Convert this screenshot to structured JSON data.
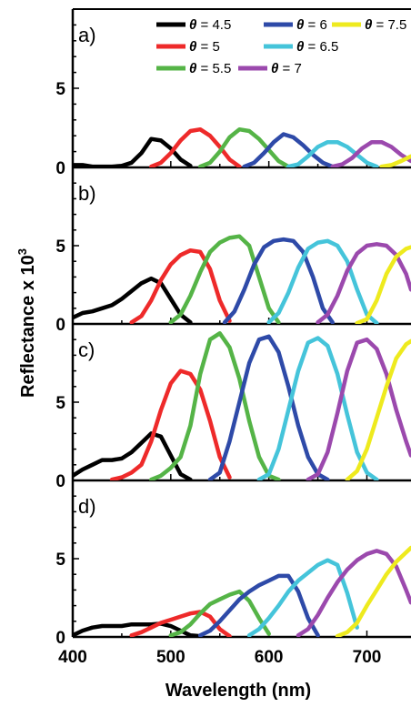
{
  "chart_data": {
    "type": "line",
    "ylabel_main": "Reflectance x 10",
    "ylabel_exp": "3",
    "xlabel": "Wavelength (nm)",
    "xlim": [
      400,
      745
    ],
    "xticks": [
      "400",
      "500",
      "600",
      "700"
    ],
    "series_colors": {
      "4.5": "#000000",
      "5": "#ee2a2a",
      "5.5": "#55b447",
      "6": "#2e4aa8",
      "6.5": "#45c4da",
      "7": "#9b49ad",
      "7.5": "#eeea1e"
    },
    "legend": [
      {
        "key": "4.5",
        "symbol": "θ",
        "text": " = 4.5"
      },
      {
        "key": "6",
        "symbol": "θ",
        "text": " = 6"
      },
      {
        "key": "7.5",
        "symbol": "θ",
        "text": " = 7.5"
      },
      {
        "key": "5",
        "symbol": "θ",
        "text": " = 5"
      },
      {
        "key": "6.5",
        "symbol": "θ",
        "text": " = 6.5"
      },
      {
        "key": "5.5",
        "symbol": "θ",
        "text": " = 5.5"
      },
      {
        "key": "7",
        "symbol": "θ",
        "text": " = 7"
      }
    ],
    "panels": [
      {
        "label": "a)",
        "ylim": [
          0,
          10
        ],
        "yticks": [
          "0",
          "5"
        ],
        "series": [
          {
            "key": "4.5",
            "x": [
              400,
              410,
              420,
              430,
              440,
              450,
              460,
              470,
              480,
              490,
              500,
              510,
              520
            ],
            "y": [
              0.15,
              0.15,
              0.05,
              0.05,
              0.05,
              0.1,
              0.3,
              0.9,
              1.8,
              1.7,
              1.2,
              0.5,
              0.1
            ]
          },
          {
            "key": "5",
            "x": [
              480,
              490,
              500,
              510,
              520,
              530,
              540,
              550,
              560,
              570
            ],
            "y": [
              0.05,
              0.3,
              0.9,
              1.7,
              2.3,
              2.4,
              2.0,
              1.3,
              0.5,
              0.05
            ]
          },
          {
            "key": "5.5",
            "x": [
              530,
              540,
              550,
              560,
              570,
              580,
              590,
              600,
              610,
              620
            ],
            "y": [
              0.05,
              0.3,
              1.0,
              1.9,
              2.4,
              2.3,
              1.8,
              1.1,
              0.4,
              0.05
            ]
          },
          {
            "key": "6",
            "x": [
              575,
              585,
              595,
              605,
              615,
              625,
              635,
              645,
              655,
              665
            ],
            "y": [
              0.05,
              0.3,
              0.9,
              1.6,
              2.1,
              1.9,
              1.4,
              0.8,
              0.3,
              0.05
            ]
          },
          {
            "key": "6.5",
            "x": [
              620,
              630,
              640,
              650,
              660,
              670,
              680,
              690,
              700,
              710
            ],
            "y": [
              0.05,
              0.2,
              0.7,
              1.3,
              1.6,
              1.6,
              1.3,
              0.8,
              0.3,
              0.05
            ]
          },
          {
            "key": "7",
            "x": [
              665,
              675,
              685,
              695,
              705,
              715,
              725,
              735,
              745
            ],
            "y": [
              0.05,
              0.2,
              0.6,
              1.2,
              1.6,
              1.6,
              1.3,
              0.8,
              0.4
            ]
          },
          {
            "key": "7.5",
            "x": [
              715,
              725,
              735,
              745
            ],
            "y": [
              0.05,
              0.15,
              0.4,
              0.7
            ]
          }
        ]
      },
      {
        "label": "b)",
        "ylim": [
          0,
          10
        ],
        "yticks": [
          "0",
          "5"
        ],
        "series": [
          {
            "key": "4.5",
            "x": [
              400,
              410,
              420,
              430,
              440,
              450,
              460,
              470,
              480,
              490,
              500,
              510,
              520
            ],
            "y": [
              0.4,
              0.7,
              0.8,
              1.0,
              1.2,
              1.6,
              2.1,
              2.6,
              2.9,
              2.6,
              1.6,
              0.6,
              0.1
            ]
          },
          {
            "key": "5",
            "x": [
              460,
              470,
              480,
              490,
              500,
              510,
              520,
              530,
              540,
              550,
              560
            ],
            "y": [
              0.1,
              0.5,
              1.5,
              2.8,
              3.8,
              4.4,
              4.7,
              4.6,
              3.5,
              1.5,
              0.2
            ]
          },
          {
            "key": "5.5",
            "x": [
              500,
              510,
              520,
              530,
              540,
              550,
              560,
              570,
              580,
              590,
              600,
              610
            ],
            "y": [
              0.1,
              0.6,
              1.8,
              3.3,
              4.6,
              5.2,
              5.5,
              5.6,
              5.0,
              3.0,
              1.0,
              0.1
            ]
          },
          {
            "key": "6",
            "x": [
              555,
              565,
              575,
              585,
              595,
              605,
              615,
              625,
              635,
              645,
              655,
              665
            ],
            "y": [
              0.1,
              0.8,
              2.2,
              3.8,
              4.9,
              5.3,
              5.4,
              5.3,
              4.6,
              3.0,
              1.0,
              0.1
            ]
          },
          {
            "key": "6.5",
            "x": [
              600,
              610,
              620,
              630,
              640,
              650,
              660,
              670,
              680,
              690,
              700,
              710
            ],
            "y": [
              0.1,
              0.7,
              2.0,
              3.6,
              4.8,
              5.2,
              5.3,
              5.0,
              4.0,
              2.2,
              0.6,
              0.05
            ]
          },
          {
            "key": "7",
            "x": [
              650,
              660,
              670,
              680,
              690,
              700,
              710,
              720,
              730,
              740,
              745
            ],
            "y": [
              0.1,
              0.6,
              1.8,
              3.4,
              4.5,
              5.0,
              5.1,
              5.0,
              4.4,
              3.2,
              2.2
            ]
          },
          {
            "key": "7.5",
            "x": [
              690,
              700,
              710,
              720,
              730,
              740,
              745
            ],
            "y": [
              0.05,
              0.3,
              1.5,
              3.2,
              4.3,
              4.8,
              4.9
            ]
          }
        ]
      },
      {
        "label": "c)",
        "ylim": [
          0,
          10
        ],
        "yticks": [
          "0",
          "5"
        ],
        "series": [
          {
            "key": "4.5",
            "x": [
              400,
              410,
              420,
              430,
              440,
              450,
              460,
              470,
              480,
              490,
              500,
              510,
              520
            ],
            "y": [
              0.3,
              0.7,
              1.0,
              1.3,
              1.3,
              1.4,
              1.8,
              2.4,
              3.0,
              2.8,
              1.6,
              0.4,
              0.05
            ]
          },
          {
            "key": "5",
            "x": [
              440,
              450,
              460,
              470,
              480,
              490,
              500,
              510,
              520,
              530,
              540,
              550,
              560
            ],
            "y": [
              0.05,
              0.2,
              0.5,
              1.0,
              2.5,
              4.5,
              6.2,
              7.0,
              6.8,
              5.8,
              3.8,
              1.5,
              0.2
            ]
          },
          {
            "key": "5.5",
            "x": [
              480,
              490,
              500,
              510,
              520,
              530,
              540,
              550,
              560,
              570,
              580,
              590,
              600,
              610
            ],
            "y": [
              0.05,
              0.3,
              0.8,
              1.5,
              3.5,
              6.8,
              9.0,
              9.4,
              8.5,
              6.5,
              3.8,
              1.5,
              0.3,
              0.05
            ]
          },
          {
            "key": "6",
            "x": [
              540,
              550,
              560,
              570,
              580,
              590,
              600,
              610,
              620,
              630,
              640,
              650,
              660
            ],
            "y": [
              0.05,
              0.5,
              2.5,
              5.0,
              7.5,
              9.0,
              9.2,
              8.2,
              6.0,
              3.5,
              1.5,
              0.4,
              0.05
            ]
          },
          {
            "key": "6.5",
            "x": [
              590,
              600,
              610,
              620,
              630,
              640,
              650,
              660,
              670,
              680,
              690,
              700,
              710
            ],
            "y": [
              0.05,
              0.4,
              2.0,
              4.5,
              7.0,
              8.8,
              9.1,
              8.6,
              6.8,
              4.2,
              1.8,
              0.5,
              0.05
            ]
          },
          {
            "key": "7",
            "x": [
              640,
              650,
              660,
              670,
              680,
              690,
              700,
              710,
              720,
              730,
              740,
              745
            ],
            "y": [
              0.05,
              0.4,
              1.8,
              4.3,
              7.0,
              8.8,
              9.0,
              8.4,
              6.8,
              4.5,
              2.5,
              1.6
            ]
          },
          {
            "key": "7.5",
            "x": [
              680,
              690,
              700,
              710,
              720,
              730,
              740,
              745
            ],
            "y": [
              0.05,
              0.6,
              2.0,
              4.0,
              6.0,
              7.8,
              8.7,
              8.9
            ]
          }
        ]
      },
      {
        "label": "d)",
        "ylim": [
          0,
          10
        ],
        "yticks": [
          "0",
          "5"
        ],
        "series": [
          {
            "key": "4.5",
            "x": [
              400,
              410,
              420,
              430,
              440,
              450,
              460,
              470,
              480,
              490,
              500,
              510,
              520,
              530
            ],
            "y": [
              0.1,
              0.4,
              0.6,
              0.7,
              0.7,
              0.7,
              0.8,
              0.8,
              0.8,
              0.85,
              0.7,
              0.4,
              0.1,
              0.05
            ]
          },
          {
            "key": "5",
            "x": [
              460,
              470,
              480,
              490,
              500,
              510,
              520,
              530,
              540,
              550,
              560
            ],
            "y": [
              0.1,
              0.3,
              0.6,
              0.9,
              1.1,
              1.3,
              1.5,
              1.6,
              1.3,
              0.5,
              0.05
            ]
          },
          {
            "key": "5.5",
            "x": [
              500,
              510,
              520,
              530,
              540,
              550,
              560,
              570,
              580,
              590,
              600
            ],
            "y": [
              0.1,
              0.3,
              0.8,
              1.5,
              2.1,
              2.4,
              2.7,
              2.9,
              2.3,
              1.2,
              0.2
            ]
          },
          {
            "key": "6",
            "x": [
              530,
              540,
              550,
              560,
              570,
              580,
              590,
              600,
              610,
              620,
              630,
              640,
              650
            ],
            "y": [
              0.1,
              0.4,
              1.0,
              1.7,
              2.4,
              2.9,
              3.3,
              3.6,
              3.9,
              3.9,
              2.9,
              1.2,
              0.1
            ]
          },
          {
            "key": "6.5",
            "x": [
              580,
              590,
              600,
              610,
              620,
              630,
              640,
              650,
              660,
              670,
              680,
              690
            ],
            "y": [
              0.1,
              0.5,
              1.2,
              2.0,
              2.9,
              3.6,
              4.1,
              4.6,
              4.9,
              4.6,
              2.8,
              0.6
            ]
          },
          {
            "key": "7",
            "x": [
              630,
              640,
              650,
              660,
              670,
              680,
              690,
              700,
              710,
              720,
              730,
              740,
              745
            ],
            "y": [
              0.1,
              0.5,
              1.4,
              2.5,
              3.5,
              4.3,
              4.9,
              5.3,
              5.5,
              5.3,
              4.5,
              3.0,
              2.2
            ]
          },
          {
            "key": "7.5",
            "x": [
              670,
              680,
              690,
              700,
              710,
              720,
              730,
              740,
              745
            ],
            "y": [
              0.05,
              0.3,
              0.9,
              2.0,
              3.0,
              4.0,
              4.8,
              5.4,
              5.7
            ]
          }
        ]
      }
    ]
  }
}
